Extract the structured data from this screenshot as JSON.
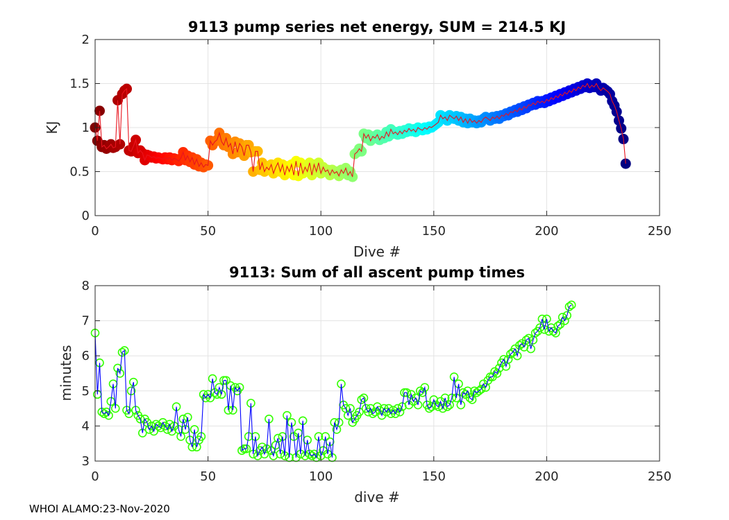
{
  "footer": "WHOI ALAMO:23-Nov-2020",
  "chart_data": [
    {
      "type": "scatter",
      "title": "9113 pump series net energy, SUM = 214.5 KJ",
      "xlabel": "Dive #",
      "ylabel": "KJ",
      "xlim": [
        0,
        250
      ],
      "ylim": [
        0,
        2
      ],
      "xticks": [
        0,
        50,
        100,
        150,
        200,
        250
      ],
      "yticks": [
        0,
        0.5,
        1,
        1.5,
        2
      ],
      "ytick_labels": [
        "0",
        "0.5",
        "1",
        "1.5",
        "2"
      ],
      "grid": true,
      "marker": "filled circle, jet colormap by dive number",
      "line_color": "#e8141e",
      "x_start": 0,
      "values": [
        1.0,
        0.85,
        1.19,
        0.78,
        0.8,
        0.76,
        0.78,
        0.81,
        0.77,
        0.78,
        1.31,
        0.81,
        1.38,
        1.42,
        1.44,
        0.74,
        0.73,
        0.79,
        0.86,
        0.71,
        0.74,
        0.71,
        0.63,
        0.69,
        0.68,
        0.66,
        0.67,
        0.65,
        0.66,
        0.65,
        0.64,
        0.66,
        0.64,
        0.66,
        0.63,
        0.65,
        0.64,
        0.62,
        0.65,
        0.72,
        0.63,
        0.68,
        0.61,
        0.66,
        0.58,
        0.64,
        0.56,
        0.6,
        0.55,
        0.58,
        0.57,
        0.85,
        0.8,
        0.84,
        0.86,
        0.94,
        0.84,
        0.8,
        0.88,
        0.78,
        0.82,
        0.7,
        0.84,
        0.72,
        0.82,
        0.78,
        0.68,
        0.8,
        0.8,
        0.72,
        0.5,
        0.73,
        0.73,
        0.52,
        0.6,
        0.5,
        0.55,
        0.52,
        0.58,
        0.48,
        0.55,
        0.6,
        0.5,
        0.58,
        0.46,
        0.56,
        0.5,
        0.58,
        0.46,
        0.62,
        0.45,
        0.6,
        0.48,
        0.55,
        0.5,
        0.6,
        0.46,
        0.58,
        0.5,
        0.6,
        0.48,
        0.55,
        0.5,
        0.52,
        0.46,
        0.52,
        0.48,
        0.5,
        0.45,
        0.52,
        0.48,
        0.54,
        0.46,
        0.5,
        0.44,
        0.7,
        0.72,
        0.76,
        0.73,
        0.93,
        0.88,
        0.92,
        0.85,
        0.9,
        0.88,
        0.92,
        0.86,
        0.9,
        0.88,
        0.95,
        0.9,
        0.98,
        0.93,
        0.95,
        0.92,
        0.96,
        0.93,
        0.97,
        0.95,
        0.99,
        0.96,
        0.98,
        0.95,
        1.0,
        0.98,
        0.97,
        1.0,
        0.98,
        1.01,
        1.0,
        1.02,
        1.04,
        1.06,
        1.14,
        1.1,
        1.12,
        1.08,
        1.14,
        1.12,
        1.1,
        1.13,
        1.08,
        1.12,
        1.06,
        1.1,
        1.05,
        1.1,
        1.06,
        1.08,
        1.05,
        1.08,
        1.06,
        1.1,
        1.12,
        1.1,
        1.08,
        1.12,
        1.1,
        1.13,
        1.1,
        1.14,
        1.13,
        1.16,
        1.14,
        1.18,
        1.17,
        1.2,
        1.18,
        1.22,
        1.2,
        1.24,
        1.22,
        1.26,
        1.25,
        1.28,
        1.26,
        1.3,
        1.28,
        1.3,
        1.28,
        1.32,
        1.3,
        1.34,
        1.32,
        1.36,
        1.34,
        1.38,
        1.36,
        1.4,
        1.38,
        1.42,
        1.4,
        1.44,
        1.42,
        1.46,
        1.44,
        1.48,
        1.46,
        1.5,
        1.45,
        1.48,
        1.46,
        1.5,
        1.45,
        1.42,
        1.45,
        1.43,
        1.41,
        1.38,
        1.3,
        1.25,
        1.18,
        1.08,
        0.99,
        0.87,
        0.59
      ]
    },
    {
      "type": "line",
      "title": "9113: Sum of all ascent pump times",
      "xlabel": "dive #",
      "ylabel": "minutes",
      "xlim": [
        0,
        250
      ],
      "ylim": [
        3,
        8
      ],
      "xticks": [
        0,
        50,
        100,
        150,
        200,
        250
      ],
      "yticks": [
        3,
        4,
        5,
        6,
        7,
        8
      ],
      "ytick_labels": [
        "3",
        "4",
        "5",
        "6",
        "7",
        "8"
      ],
      "grid": true,
      "marker": "open circle",
      "marker_color": "#33ff00",
      "line_color": "#0000ff",
      "x_start": 0,
      "values": [
        6.65,
        4.9,
        5.8,
        4.4,
        4.35,
        4.4,
        4.3,
        4.7,
        5.2,
        4.5,
        5.65,
        5.5,
        6.1,
        6.15,
        4.45,
        4.35,
        5.0,
        5.25,
        4.45,
        4.3,
        4.2,
        3.8,
        4.2,
        4.1,
        3.9,
        4.0,
        3.85,
        4.05,
        4.0,
        3.95,
        4.1,
        4.0,
        3.9,
        4.05,
        3.85,
        4.0,
        4.55,
        3.9,
        3.7,
        4.2,
        3.9,
        4.25,
        3.6,
        3.4,
        3.9,
        3.4,
        3.6,
        3.7,
        4.9,
        4.8,
        4.9,
        4.8,
        5.35,
        4.95,
        4.9,
        5.1,
        4.9,
        5.3,
        5.3,
        4.45,
        5.15,
        4.45,
        5.1,
        5.0,
        5.1,
        3.3,
        3.35,
        3.35,
        3.7,
        4.65,
        3.2,
        3.7,
        3.15,
        3.3,
        3.4,
        3.2,
        3.35,
        4.2,
        3.3,
        3.15,
        3.45,
        3.65,
        3.2,
        3.7,
        3.15,
        4.3,
        3.1,
        4.1,
        3.7,
        3.1,
        3.8,
        3.2,
        4.15,
        3.15,
        3.6,
        3.2,
        3.15,
        3.2,
        3.1,
        3.7,
        3.15,
        3.3,
        3.7,
        3.2,
        3.55,
        3.1,
        4.1,
        3.9,
        4.1,
        5.2,
        4.6,
        4.5,
        4.3,
        4.5,
        4.1,
        4.2,
        4.3,
        4.4,
        4.75,
        4.8,
        4.5,
        4.4,
        4.5,
        4.35,
        4.4,
        4.55,
        4.45,
        4.3,
        4.5,
        4.4,
        4.5,
        4.35,
        4.45,
        4.35,
        4.5,
        4.4,
        4.55,
        4.95,
        4.95,
        4.6,
        4.9,
        4.7,
        4.8,
        4.6,
        5.0,
        4.95,
        5.1,
        4.6,
        4.5,
        4.55,
        4.75,
        4.6,
        4.55,
        4.7,
        4.5,
        4.8,
        4.55,
        4.6,
        4.8,
        5.4,
        4.8,
        5.2,
        4.6,
        4.95,
        4.9,
        5.0,
        4.8,
        4.75,
        5.0,
        4.95,
        5.0,
        5.05,
        5.2,
        5.1,
        5.3,
        5.4,
        5.4,
        5.55,
        5.5,
        5.65,
        5.8,
        5.9,
        5.7,
        5.9,
        6.05,
        6.1,
        6.2,
        6.0,
        6.3,
        6.35,
        6.25,
        6.45,
        6.5,
        6.2,
        6.45,
        6.65,
        6.7,
        6.8,
        7.05,
        6.75,
        7.05,
        6.7,
        6.8,
        6.7,
        6.65,
        6.85,
        6.9,
        7.1,
        7.0,
        7.15,
        7.4,
        7.45
      ]
    }
  ]
}
